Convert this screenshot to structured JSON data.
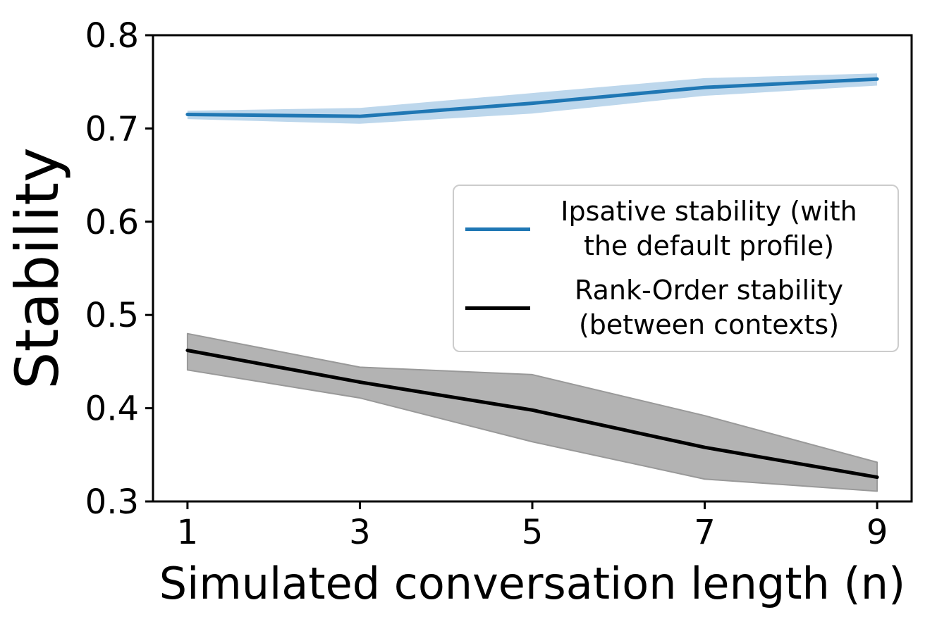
{
  "chart_data": {
    "type": "line",
    "xlabel": "Simulated conversation length (n)",
    "ylabel": "Stability",
    "x": [
      1,
      3,
      5,
      7,
      9
    ],
    "xticks": [
      "1",
      "3",
      "5",
      "7",
      "9"
    ],
    "yticks": [
      "0.3",
      "0.4",
      "0.5",
      "0.6",
      "0.7",
      "0.8"
    ],
    "ytick_values": [
      0.3,
      0.4,
      0.5,
      0.6,
      0.7,
      0.8
    ],
    "xlim": [
      0.6,
      9.4
    ],
    "ylim": [
      0.3,
      0.8
    ],
    "grid": "off",
    "legend_position": "center right",
    "series": [
      {
        "name": "Ipsative stability (with the default profile)",
        "legend_lines": [
          "Ipsative stability (with",
          "the default profile)"
        ],
        "color": "#1f77b4",
        "band_color": "#bdd7ec",
        "band_edge": "none",
        "values": [
          0.715,
          0.713,
          0.727,
          0.744,
          0.753
        ],
        "band_low": [
          0.71,
          0.705,
          0.716,
          0.735,
          0.746
        ],
        "band_high": [
          0.719,
          0.722,
          0.738,
          0.754,
          0.759
        ]
      },
      {
        "name": "Rank-Order stability (between contexts)",
        "legend_lines": [
          "Rank-Order stability",
          "(between contexts)"
        ],
        "color": "#000000",
        "band_color": "#b3b3b3",
        "band_edge": "#999999",
        "values": [
          0.462,
          0.428,
          0.398,
          0.358,
          0.326
        ],
        "band_low": [
          0.441,
          0.411,
          0.364,
          0.324,
          0.311
        ],
        "band_high": [
          0.48,
          0.444,
          0.436,
          0.392,
          0.342
        ]
      }
    ],
    "frame_color": "#000000",
    "background_color": "#ffffff"
  }
}
